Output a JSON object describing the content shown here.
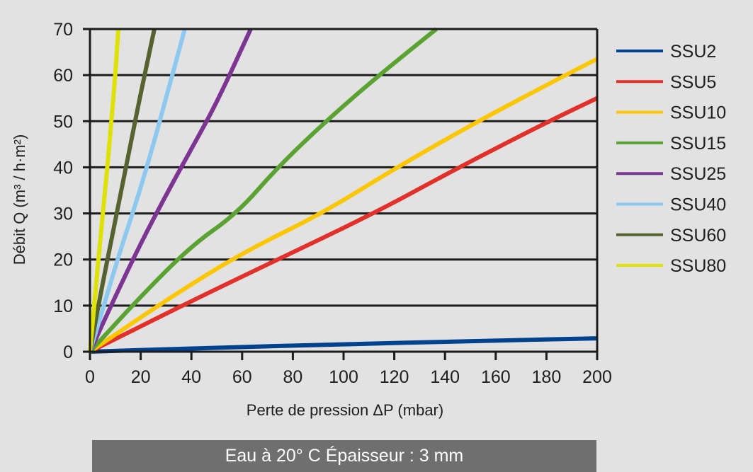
{
  "chart_data": {
    "type": "line",
    "title": "",
    "xlabel": "Perte de pression ΔP (mbar)",
    "ylabel": "Débit Q (m³ / h·m²)",
    "xlim": [
      0,
      200
    ],
    "ylim": [
      0,
      70
    ],
    "x_ticks": [
      0,
      20,
      40,
      60,
      80,
      100,
      120,
      140,
      160,
      180,
      200
    ],
    "y_ticks": [
      0,
      10,
      20,
      30,
      40,
      50,
      60,
      70
    ],
    "grid": {
      "horizontal": true,
      "vertical": false
    },
    "legend_position": "right",
    "series": [
      {
        "name": "SSU2",
        "color": "#00428e",
        "points": [
          [
            0,
            0
          ],
          [
            50,
            0.9
          ],
          [
            100,
            1.6
          ],
          [
            150,
            2.3
          ],
          [
            200,
            2.9
          ]
        ]
      },
      {
        "name": "SSU5",
        "color": "#e2302a",
        "points": [
          [
            0,
            0
          ],
          [
            40,
            11
          ],
          [
            74,
            20
          ],
          [
            112,
            30
          ],
          [
            145.5,
            40
          ],
          [
            181,
            50
          ],
          [
            200,
            55
          ]
        ]
      },
      {
        "name": "SSU10",
        "color": "#fcc600",
        "points": [
          [
            0,
            0
          ],
          [
            35,
            13
          ],
          [
            62,
            22
          ],
          [
            91.6,
            30
          ],
          [
            121,
            40
          ],
          [
            153,
            50
          ],
          [
            187.5,
            60
          ],
          [
            200,
            63.5
          ]
        ]
      },
      {
        "name": "SSU15",
        "color": "#5aa232",
        "points": [
          [
            0,
            0
          ],
          [
            20,
            12
          ],
          [
            40,
            23
          ],
          [
            58,
            30
          ],
          [
            74,
            40
          ],
          [
            93,
            50
          ],
          [
            114,
            60
          ],
          [
            136.6,
            70
          ]
        ]
      },
      {
        "name": "SSU25",
        "color": "#7d3593",
        "points": [
          [
            0,
            0
          ],
          [
            10,
            12
          ],
          [
            20,
            23.5
          ],
          [
            30,
            34
          ],
          [
            40,
            44
          ],
          [
            50,
            54
          ],
          [
            63.4,
            70
          ]
        ]
      },
      {
        "name": "SSU40",
        "color": "#8cc8ef",
        "points": [
          [
            0,
            0
          ],
          [
            6,
            11
          ],
          [
            12,
            22
          ],
          [
            18,
            32
          ],
          [
            24,
            43
          ],
          [
            30,
            55
          ],
          [
            37.4,
            70
          ]
        ]
      },
      {
        "name": "SSU60",
        "color": "#566230",
        "points": [
          [
            0,
            0
          ],
          [
            4,
            12
          ],
          [
            8,
            23
          ],
          [
            12,
            34
          ],
          [
            16,
            45
          ],
          [
            20,
            56
          ],
          [
            25.4,
            70
          ]
        ]
      },
      {
        "name": "SSU80",
        "color": "#dfe200",
        "points": [
          [
            0,
            0
          ],
          [
            2,
            12
          ],
          [
            4,
            24
          ],
          [
            6,
            35
          ],
          [
            8,
            47
          ],
          [
            10,
            60
          ],
          [
            11.2,
            70
          ]
        ]
      }
    ],
    "caption": "Eau à 20° C  Épaisseur : 3 mm"
  }
}
